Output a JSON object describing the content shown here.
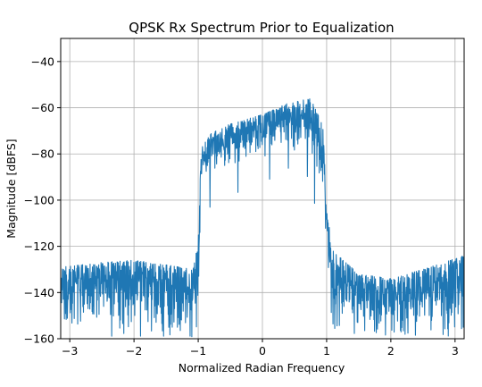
{
  "chart_data": {
    "type": "line",
    "title": "QPSK Rx Spectrum Prior to Equalization",
    "xlabel": "Normalized Radian Frequency",
    "ylabel": "Magnitude [dBFS]",
    "xlim": [
      -3.1416,
      3.1416
    ],
    "ylim": [
      -160,
      -30
    ],
    "xticks": [
      -3,
      -2,
      -1,
      0,
      1,
      2,
      3
    ],
    "xtick_labels": [
      "−3",
      "−2",
      "−1",
      "0",
      "1",
      "2",
      "3"
    ],
    "yticks": [
      -40,
      -60,
      -80,
      -100,
      -120,
      -140,
      -160
    ],
    "ytick_labels": [
      "−40",
      "−60",
      "−80",
      "−100",
      "−120",
      "−140",
      "−160"
    ],
    "grid": true,
    "series": [
      {
        "color": "#1f77b4",
        "envelope": [
          {
            "x": -3.14,
            "upper": -129,
            "lower": -160
          },
          {
            "x": -2.5,
            "upper": -127,
            "lower": -160
          },
          {
            "x": -2.0,
            "upper": -126,
            "lower": -160
          },
          {
            "x": -1.5,
            "upper": -128,
            "lower": -160
          },
          {
            "x": -1.08,
            "upper": -130,
            "lower": -160
          },
          {
            "x": -1.0,
            "upper": -118,
            "lower": -160
          },
          {
            "x": -0.96,
            "upper": -78,
            "lower": -100
          },
          {
            "x": -0.8,
            "upper": -71,
            "lower": -90
          },
          {
            "x": -0.5,
            "upper": -67,
            "lower": -87
          },
          {
            "x": 0.0,
            "upper": -63,
            "lower": -83
          },
          {
            "x": 0.4,
            "upper": -58,
            "lower": -78
          },
          {
            "x": 0.75,
            "upper": -56,
            "lower": -80
          },
          {
            "x": 0.95,
            "upper": -68,
            "lower": -98
          },
          {
            "x": 1.0,
            "upper": -104,
            "lower": -125
          },
          {
            "x": 1.1,
            "upper": -122,
            "lower": -160
          },
          {
            "x": 1.5,
            "upper": -132,
            "lower": -160
          },
          {
            "x": 2.0,
            "upper": -134,
            "lower": -160
          },
          {
            "x": 2.5,
            "upper": -130,
            "lower": -160
          },
          {
            "x": 3.14,
            "upper": -124,
            "lower": -160
          }
        ]
      }
    ]
  }
}
